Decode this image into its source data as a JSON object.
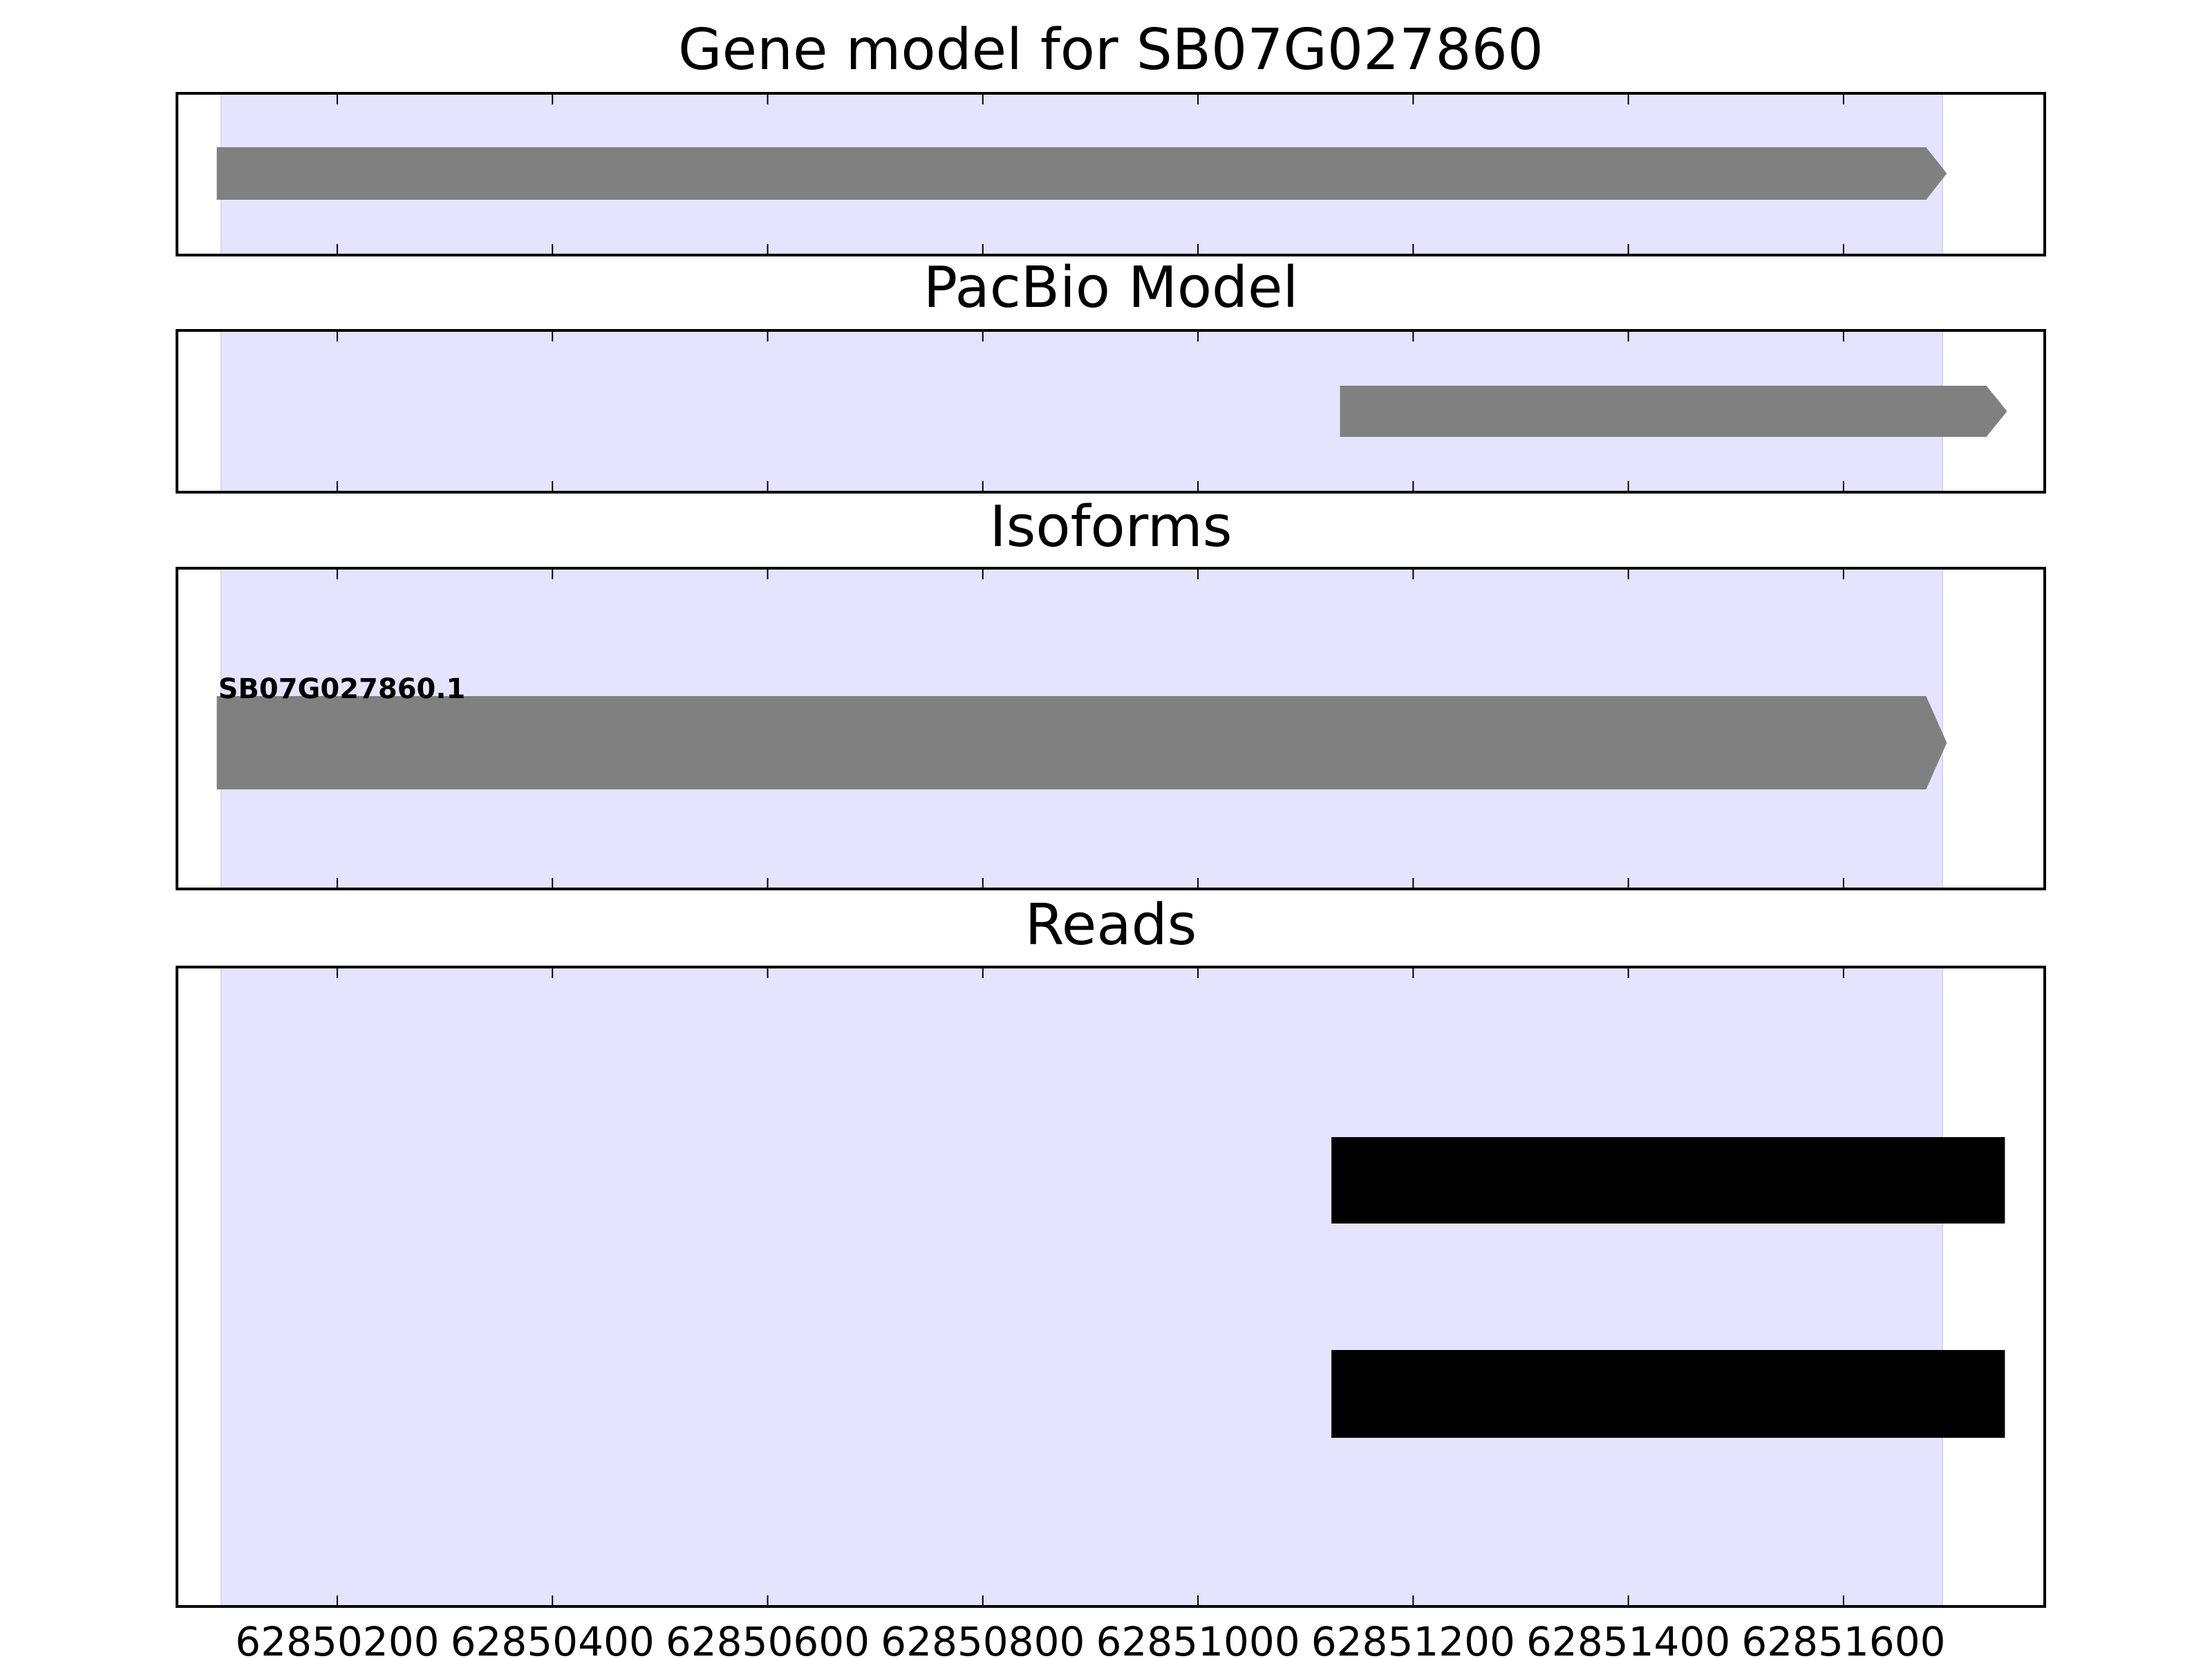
{
  "chart_data": {
    "type": "gene-track",
    "xlim": [
      62850051,
      62851787
    ],
    "x_ticks": [
      62850200,
      62850400,
      62850600,
      62850800,
      62851000,
      62851200,
      62851400,
      62851600
    ],
    "x_tick_labels": [
      "62850200",
      "62850400",
      "62850600",
      "62850800",
      "62851000",
      "62851200",
      "62851400",
      "62851600"
    ],
    "highlight_region": {
      "start": 62850092,
      "end": 62851692,
      "color": "#e4e4ff"
    },
    "colors": {
      "feature": "#808080",
      "read": "#000000",
      "axis": "#000000"
    },
    "panels": [
      {
        "title": "Gene model for SB07G027860",
        "features": [
          {
            "start": 62850088,
            "end": 62851696,
            "strand": "+",
            "label": ""
          }
        ]
      },
      {
        "title": "PacBio Model",
        "features": [
          {
            "start": 62851132,
            "end": 62851752,
            "strand": "+",
            "label": ""
          }
        ]
      },
      {
        "title": "Isoforms",
        "features": [
          {
            "start": 62850088,
            "end": 62851696,
            "strand": "+",
            "label": "SB07G027860.1"
          }
        ]
      },
      {
        "title": "Reads",
        "reads": [
          {
            "start": 62851124,
            "end": 62851750,
            "row": 1
          },
          {
            "start": 62851124,
            "end": 62851750,
            "row": 2
          }
        ]
      }
    ]
  }
}
